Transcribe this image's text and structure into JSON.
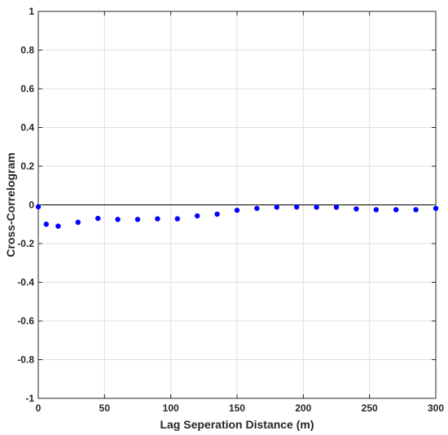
{
  "chart_data": {
    "type": "scatter",
    "title": "",
    "xlabel": "Lag Seperation Distance (m)",
    "ylabel": "Cross-Correlogram",
    "xlim": [
      0,
      300
    ],
    "ylim": [
      -1,
      1
    ],
    "grid": true,
    "x_ticks": [
      0,
      50,
      100,
      150,
      200,
      250,
      300
    ],
    "y_ticks": [
      -1,
      -0.8,
      -0.6,
      -0.4,
      -0.2,
      0,
      0.2,
      0.4,
      0.6,
      0.8,
      1
    ],
    "x_tick_labels": [
      "0",
      "50",
      "100",
      "150",
      "200",
      "250",
      "300"
    ],
    "y_tick_labels": [
      "-1",
      "-0.8",
      "-0.6",
      "-0.4",
      "-0.2",
      "0",
      "0.2",
      "0.4",
      "0.6",
      "0.8",
      "1"
    ],
    "reference_line_y": 0,
    "marker_color": "#0000ff",
    "series": [
      {
        "x": [
          0,
          6,
          15,
          30,
          45,
          60,
          75,
          90,
          105,
          120,
          135,
          150,
          165,
          180,
          195,
          210,
          225,
          240,
          255,
          270,
          285,
          300
        ],
        "y": [
          -0.01,
          -0.1,
          -0.11,
          -0.09,
          -0.07,
          -0.075,
          -0.075,
          -0.072,
          -0.072,
          -0.057,
          -0.048,
          -0.028,
          -0.018,
          -0.012,
          -0.011,
          -0.012,
          -0.012,
          -0.021,
          -0.025,
          -0.025,
          -0.025,
          -0.018
        ]
      }
    ]
  }
}
